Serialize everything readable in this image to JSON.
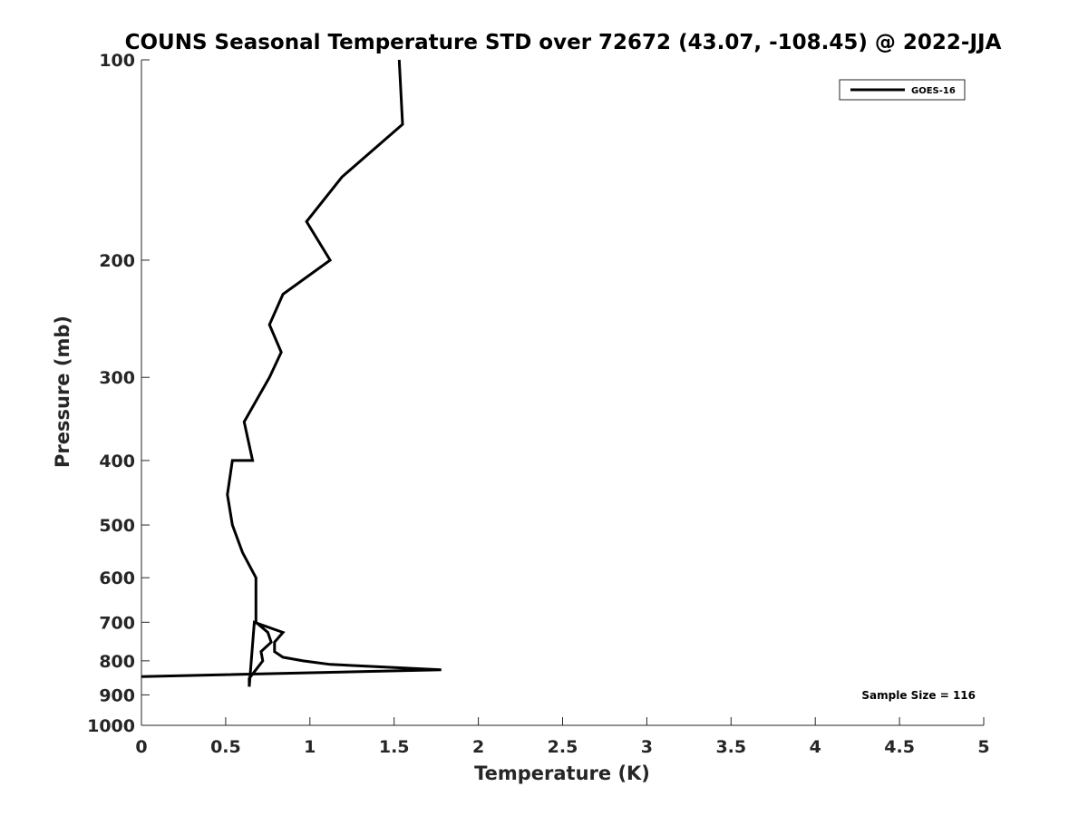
{
  "chart_data": {
    "type": "line",
    "title": "COUNS Seasonal Temperature STD over 72672 (43.07, -108.45) @ 2022-JJA",
    "xlabel": "Temperature (K)",
    "ylabel": "Pressure (mb)",
    "xlim": [
      0,
      5
    ],
    "ylim": [
      100,
      1000
    ],
    "y_scale": "log",
    "y_direction": "reversed",
    "x_ticks": [
      "0",
      "0.5",
      "1",
      "1.5",
      "2",
      "2.5",
      "3",
      "3.5",
      "4",
      "4.5",
      "5"
    ],
    "y_ticks": [
      "100",
      "200",
      "300",
      "400",
      "500",
      "600",
      "700",
      "800",
      "900",
      "1000"
    ],
    "grid": false,
    "legend_position": "top-right",
    "annotation": "Sample Size = 116",
    "series": [
      {
        "name": "GOES-16",
        "color": "#000000",
        "points": [
          [
            1.53,
            100
          ],
          [
            1.55,
            125
          ],
          [
            1.19,
            150
          ],
          [
            0.98,
            175
          ],
          [
            1.12,
            200
          ],
          [
            0.84,
            225
          ],
          [
            0.76,
            250
          ],
          [
            0.83,
            275
          ],
          [
            0.76,
            300
          ],
          [
            0.61,
            350
          ],
          [
            0.66,
            400
          ],
          [
            0.54,
            400
          ],
          [
            0.51,
            450
          ],
          [
            0.54,
            500
          ],
          [
            0.6,
            550
          ],
          [
            0.68,
            600
          ],
          [
            0.68,
            700
          ],
          [
            0.75,
            725
          ],
          [
            0.77,
            750
          ],
          [
            0.71,
            775
          ],
          [
            0.72,
            800
          ],
          [
            0.68,
            825
          ],
          [
            0.64,
            850
          ],
          [
            0.64,
            875
          ],
          [
            0.67,
            700
          ],
          [
            0.84,
            725
          ],
          [
            0.79,
            750
          ],
          [
            0.79,
            775
          ],
          [
            0.84,
            790
          ],
          [
            0.96,
            800
          ],
          [
            1.12,
            810
          ],
          [
            1.78,
            825
          ],
          [
            0.0,
            845
          ]
        ]
      }
    ]
  }
}
